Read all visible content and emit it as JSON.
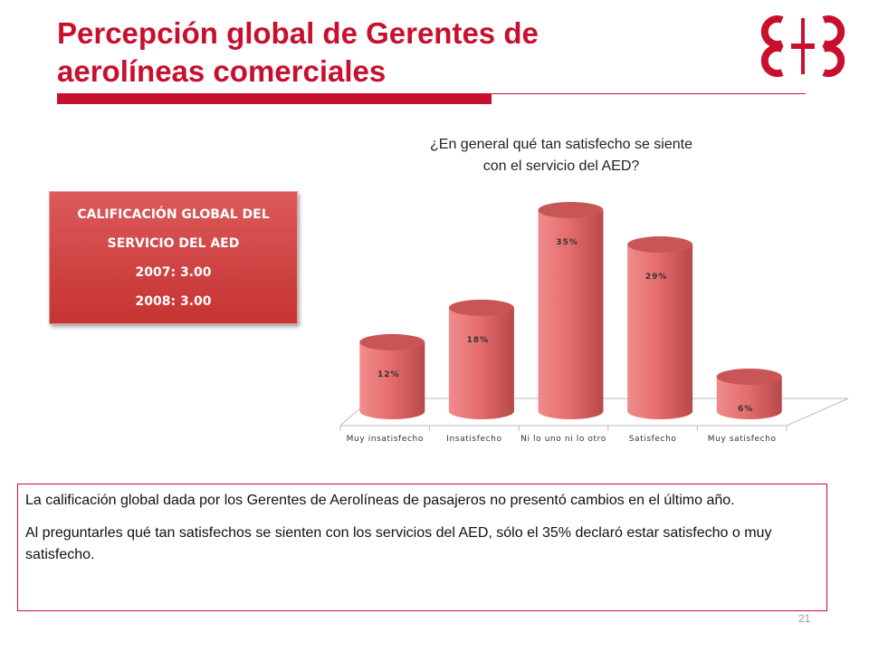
{
  "slide": {
    "title_line1": "Percepción global de Gerentes de",
    "title_line2": "aerolíneas comerciales",
    "page_number": "21"
  },
  "logo": {
    "name": "cbc-red-logo"
  },
  "score_box": {
    "line1": "CALIFICACIÓN GLOBAL DEL",
    "line2": "SERVICIO DEL AED",
    "line3": "2007: 3.00",
    "line4": "2008: 3.00"
  },
  "question": {
    "line1": "¿En general qué tan satisfecho se siente",
    "line2": "con el servicio del AED?"
  },
  "chart_data": {
    "type": "bar",
    "style": "3d-cylinder",
    "categories": [
      "Muy insatisfecho",
      "Insatisfecho",
      "Ni lo uno ni lo otro",
      "Satisfecho",
      "Muy satisfecho"
    ],
    "values": [
      12,
      18,
      35,
      29,
      6
    ],
    "data_labels": [
      "12%",
      "18%",
      "35%",
      "29%",
      "6%"
    ],
    "unit": "%",
    "ylim": [
      0,
      35
    ],
    "grid": false,
    "legend": "none",
    "bar_color": "#e66e6e"
  },
  "notes": {
    "paragraph1": "La calificación global dada por los Gerentes de Aerolíneas de pasajeros no presentó cambios en el último año.",
    "paragraph2": "Al preguntarles qué tan satisfechos se sienten con los servicios del AED, sólo el 35% declaró estar satisfecho o muy satisfecho."
  },
  "colors": {
    "brand_red": "#c8102e",
    "box_red": "#d04444"
  }
}
